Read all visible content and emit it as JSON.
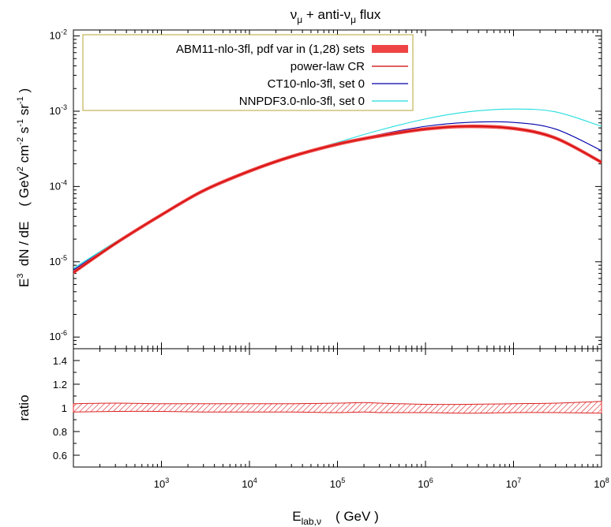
{
  "chart_data": [
    {
      "type": "line",
      "title": "ν_μ + anti-ν_μ  flux",
      "ylabel": "E³ dN / dE  ( GeV² cm⁻² s⁻¹ sr⁻¹ )",
      "xscale": "log",
      "yscale": "log",
      "xlim": [
        100,
        100000000
      ],
      "ylim": [
        7e-07,
        0.012
      ],
      "x_ticks": [
        {
          "value": 1000,
          "base": "10",
          "exp": "3"
        },
        {
          "value": 10000,
          "base": "10",
          "exp": "4"
        },
        {
          "value": 100000,
          "base": "10",
          "exp": "5"
        },
        {
          "value": 1000000,
          "base": "10",
          "exp": "6"
        },
        {
          "value": 10000000,
          "base": "10",
          "exp": "7"
        },
        {
          "value": 100000000,
          "base": "10",
          "exp": "8"
        }
      ],
      "y_ticks": [
        {
          "value": 1e-06,
          "base": "10",
          "exp": "-6"
        },
        {
          "value": 1e-05,
          "base": "10",
          "exp": "-5"
        },
        {
          "value": 0.0001,
          "base": "10",
          "exp": "-4"
        },
        {
          "value": 0.001,
          "base": "10",
          "exp": "-3"
        },
        {
          "value": 0.01,
          "base": "10",
          "exp": "-2"
        }
      ],
      "legend_placement": "top-left",
      "series": [
        {
          "name": "ABM11-nlo-3fl, pdf var in (1,28) sets",
          "style": "band",
          "color": "#ee4444",
          "x": [
            100,
            300,
            1000,
            3000,
            10000,
            30000,
            100000,
            300000,
            1000000,
            3000000,
            10000000,
            30000000,
            100000000
          ],
          "y": [
            7.2e-06,
            1.75e-05,
            4.2e-05,
            8.8e-05,
            0.00016,
            0.00025,
            0.000365,
            0.00047,
            0.00058,
            0.00063,
            0.00059,
            0.00044,
            0.00021
          ],
          "relative_width": 0.035
        },
        {
          "name": "power-law CR",
          "style": "line",
          "color": "#cc0000",
          "x": [
            100,
            300,
            1000,
            3000,
            10000,
            30000,
            100000,
            300000,
            1000000,
            3000000,
            10000000,
            30000000,
            100000000
          ],
          "y": [
            7.2e-06,
            1.75e-05,
            4.2e-05,
            8.8e-05,
            0.00016,
            0.00025,
            0.000365,
            0.00047,
            0.00058,
            0.00063,
            0.00059,
            0.00044,
            0.00021
          ]
        },
        {
          "name": "CT10-nlo-3fl, set 0",
          "style": "line",
          "color": "#0000aa",
          "x": [
            100,
            300,
            1000,
            3000,
            10000,
            30000,
            100000,
            300000,
            1000000,
            3000000,
            10000000,
            30000000,
            100000000
          ],
          "y": [
            7.8e-06,
            1.8e-05,
            4.3e-05,
            8.9e-05,
            0.000161,
            0.000252,
            0.00037,
            0.00049,
            0.00063,
            0.00071,
            0.00071,
            0.00058,
            0.0003
          ]
        },
        {
          "name": "NNPDF3.0-nlo-3fl, set 0",
          "style": "line",
          "color": "#22dddd",
          "x": [
            100,
            300,
            1000,
            3000,
            10000,
            30000,
            100000,
            300000,
            1000000,
            3000000,
            10000000,
            30000000,
            100000000
          ],
          "y": [
            8.2e-06,
            1.83e-05,
            4.25e-05,
            8.75e-05,
            0.000159,
            0.000252,
            0.000385,
            0.00056,
            0.00079,
            0.00098,
            0.00107,
            0.00098,
            0.00063
          ]
        }
      ]
    },
    {
      "type": "area",
      "ylabel": "ratio",
      "xlabel_main": "E",
      "xlabel_sub": "lab,ν",
      "xlabel_unit": "( GeV )",
      "xscale": "log",
      "xlim": [
        100,
        100000000
      ],
      "ylim": [
        0.5,
        1.5
      ],
      "y_ticks": [
        "0.6",
        "0.8",
        "1",
        "1.2",
        "1.4"
      ],
      "x_ticks": [
        {
          "value": 1000,
          "base": "10",
          "exp": "3"
        },
        {
          "value": 10000,
          "base": "10",
          "exp": "4"
        },
        {
          "value": 100000,
          "base": "10",
          "exp": "5"
        },
        {
          "value": 1000000,
          "base": "10",
          "exp": "6"
        },
        {
          "value": 10000000,
          "base": "10",
          "exp": "7"
        },
        {
          "value": 100000000,
          "base": "10",
          "exp": "8"
        }
      ],
      "band": {
        "color": "#dd2222",
        "x": [
          100,
          300,
          1000,
          3000,
          10000,
          30000,
          100000,
          200000,
          300000,
          1000000,
          3000000,
          10000000,
          30000000,
          100000000
        ],
        "upper": [
          1.035,
          1.04,
          1.035,
          1.035,
          1.035,
          1.035,
          1.04,
          1.045,
          1.04,
          1.03,
          1.03,
          1.035,
          1.04,
          1.055
        ],
        "lower": [
          0.965,
          0.97,
          0.97,
          0.965,
          0.965,
          0.965,
          0.96,
          0.965,
          0.96,
          0.96,
          0.955,
          0.96,
          0.96,
          0.955
        ]
      }
    }
  ]
}
